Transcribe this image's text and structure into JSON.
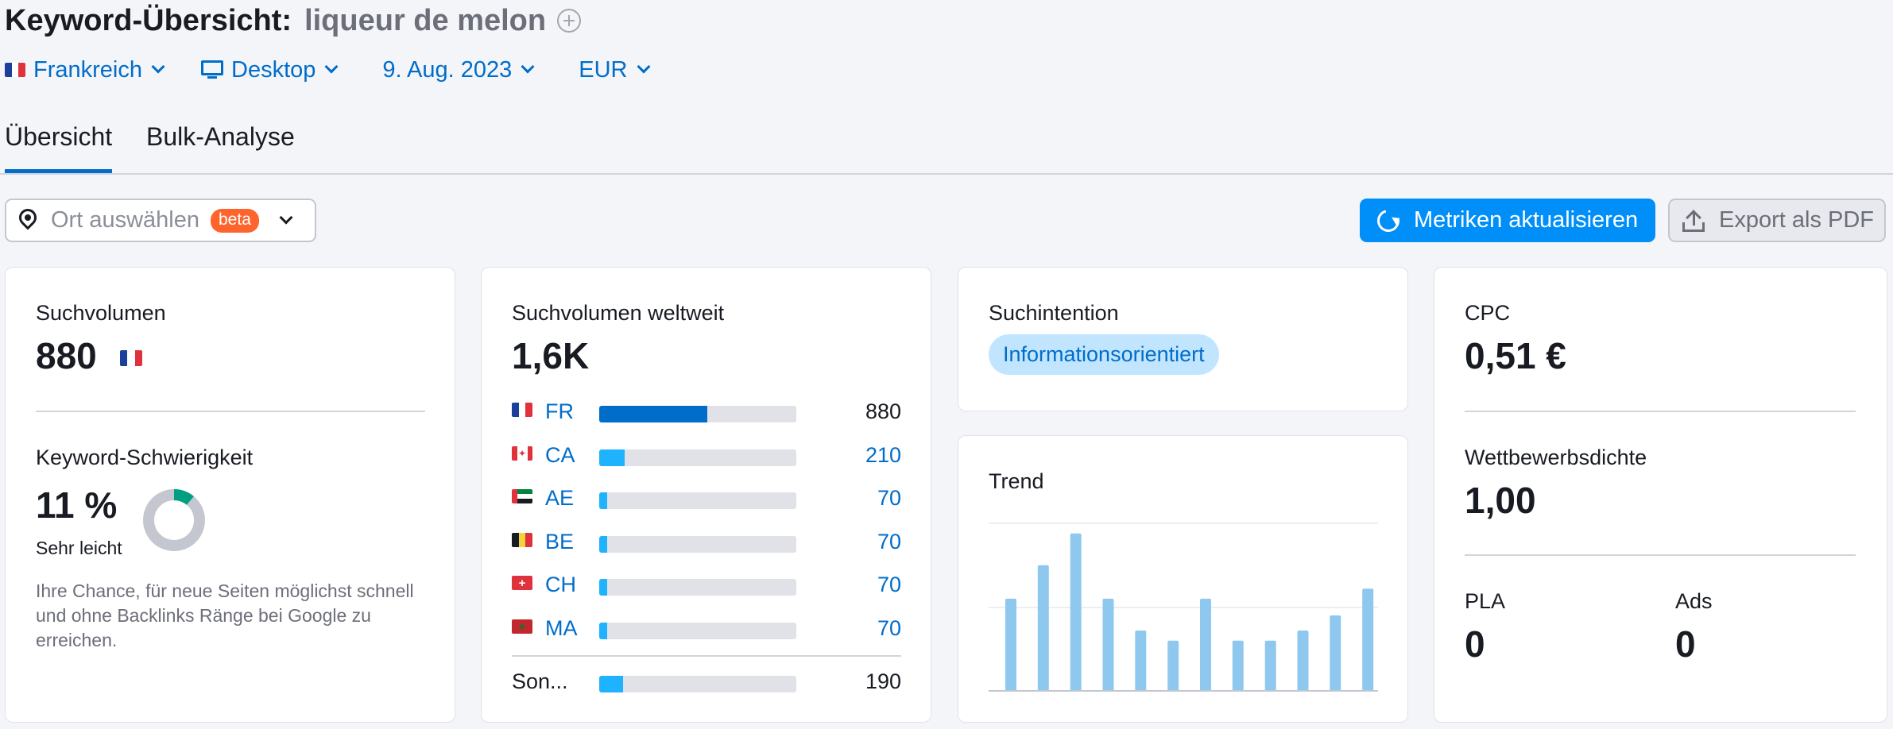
{
  "header": {
    "title_label": "Keyword-Übersicht:",
    "keyword": "liqueur de melon"
  },
  "filters": {
    "country": "Frankreich",
    "device": "Desktop",
    "date": "9. Aug. 2023",
    "currency": "EUR"
  },
  "tabs": [
    {
      "label": "Übersicht",
      "active": true
    },
    {
      "label": "Bulk-Analyse",
      "active": false
    }
  ],
  "toolbar": {
    "location_placeholder": "Ort auswählen",
    "beta_badge": "beta",
    "update_label": "Metriken aktualisieren",
    "export_label": "Export als PDF"
  },
  "volume": {
    "label": "Suchvolumen",
    "value": "880"
  },
  "difficulty": {
    "label": "Keyword-Schwierigkeit",
    "value": "11 %",
    "level": "Sehr leicht",
    "percent": 11,
    "description": "Ihre Chance, für neue Seiten möglichst schnell und ohne Backlinks Ränge bei Google zu erreichen."
  },
  "global_volume": {
    "label": "Suchvolumen weltweit",
    "value": "1,6K",
    "rows": [
      {
        "code": "FR",
        "value": "880",
        "share": 0.55,
        "flag": "fr"
      },
      {
        "code": "CA",
        "value": "210",
        "share": 0.13,
        "flag": "ca"
      },
      {
        "code": "AE",
        "value": "70",
        "share": 0.04,
        "flag": "ae"
      },
      {
        "code": "BE",
        "value": "70",
        "share": 0.04,
        "flag": "be"
      },
      {
        "code": "CH",
        "value": "70",
        "share": 0.04,
        "flag": "ch"
      },
      {
        "code": "MA",
        "value": "70",
        "share": 0.04,
        "flag": "ma"
      }
    ],
    "other": {
      "code": "Son...",
      "value": "190",
      "share": 0.12
    }
  },
  "intent": {
    "label": "Suchintention",
    "badge": "Informationsorientiert"
  },
  "trend": {
    "label": "Trend",
    "values": [
      0.55,
      0.75,
      0.94,
      0.55,
      0.36,
      0.3,
      0.55,
      0.3,
      0.3,
      0.36,
      0.45,
      0.61
    ]
  },
  "cpc": {
    "label": "CPC",
    "value": "0,51 €"
  },
  "competition": {
    "label": "Wettbewerbsdichte",
    "value": "1,00"
  },
  "pla": {
    "label": "PLA",
    "value": "0"
  },
  "ads": {
    "label": "Ads",
    "value": "0"
  },
  "colors": {
    "accent": "#006dca",
    "primary_button": "#008ff8",
    "bar_dark": "#006dca",
    "bar_light": "#1fb2ff",
    "trend_bar": "#8fc8ef",
    "difficulty_green": "#009f81",
    "beta": "#ff642d"
  }
}
